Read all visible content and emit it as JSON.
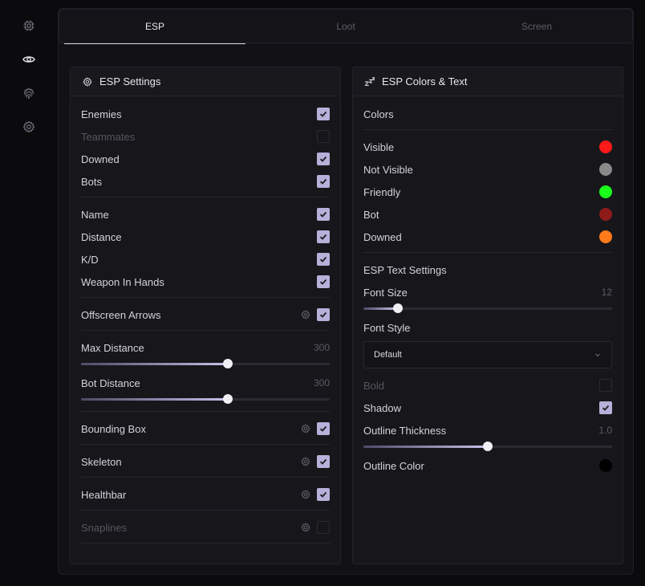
{
  "sidebar": {
    "items": [
      {
        "icon": "chip-icon",
        "active": false
      },
      {
        "icon": "eye-icon",
        "active": true
      },
      {
        "icon": "fingerprint-icon",
        "active": false
      },
      {
        "icon": "gear-icon",
        "active": false
      }
    ]
  },
  "tabs": [
    {
      "label": "ESP",
      "active": true
    },
    {
      "label": "Loot",
      "active": false
    },
    {
      "label": "Screen",
      "active": false
    }
  ],
  "esp_settings": {
    "title": "ESP Settings",
    "enemies": {
      "label": "Enemies",
      "checked": true
    },
    "teammates": {
      "label": "Teammates",
      "checked": false
    },
    "downed": {
      "label": "Downed",
      "checked": true
    },
    "bots": {
      "label": "Bots",
      "checked": true
    },
    "name": {
      "label": "Name",
      "checked": true
    },
    "distance": {
      "label": "Distance",
      "checked": true
    },
    "kd": {
      "label": "K/D",
      "checked": true
    },
    "weapon": {
      "label": "Weapon In Hands",
      "checked": true
    },
    "offscreen": {
      "label": "Offscreen Arrows",
      "checked": true
    },
    "max_distance": {
      "label": "Max Distance",
      "value": "300",
      "fraction": 0.59
    },
    "bot_distance": {
      "label": "Bot Distance",
      "value": "300",
      "fraction": 0.59
    },
    "bounding_box": {
      "label": "Bounding Box",
      "checked": true
    },
    "skeleton": {
      "label": "Skeleton",
      "checked": true
    },
    "healthbar": {
      "label": "Healthbar",
      "checked": true
    },
    "snaplines": {
      "label": "Snaplines",
      "checked": false
    }
  },
  "esp_colors": {
    "title": "ESP Colors & Text",
    "colors_heading": "Colors",
    "visible": {
      "label": "Visible",
      "color": "#ff1a1a"
    },
    "not_visible": {
      "label": "Not Visible",
      "color": "#8a8a8a"
    },
    "friendly": {
      "label": "Friendly",
      "color": "#1aff1a"
    },
    "bot": {
      "label": "Bot",
      "color": "#8f1a1a"
    },
    "downed": {
      "label": "Downed",
      "color": "#ff7a1a"
    },
    "text_heading": "ESP Text Settings",
    "font_size": {
      "label": "Font Size",
      "value": "12",
      "fraction": 0.14
    },
    "font_style": {
      "label": "Font Style",
      "selected": "Default"
    },
    "bold": {
      "label": "Bold",
      "checked": false
    },
    "shadow": {
      "label": "Shadow",
      "checked": true
    },
    "outline_thickness": {
      "label": "Outline Thickness",
      "value": "1.0",
      "fraction": 0.5
    },
    "outline_color": {
      "label": "Outline Color",
      "color": "#000000"
    }
  },
  "colors": {
    "accent": "#b8b0d8",
    "background": "#0b0b0e",
    "panel": "#17171b"
  }
}
